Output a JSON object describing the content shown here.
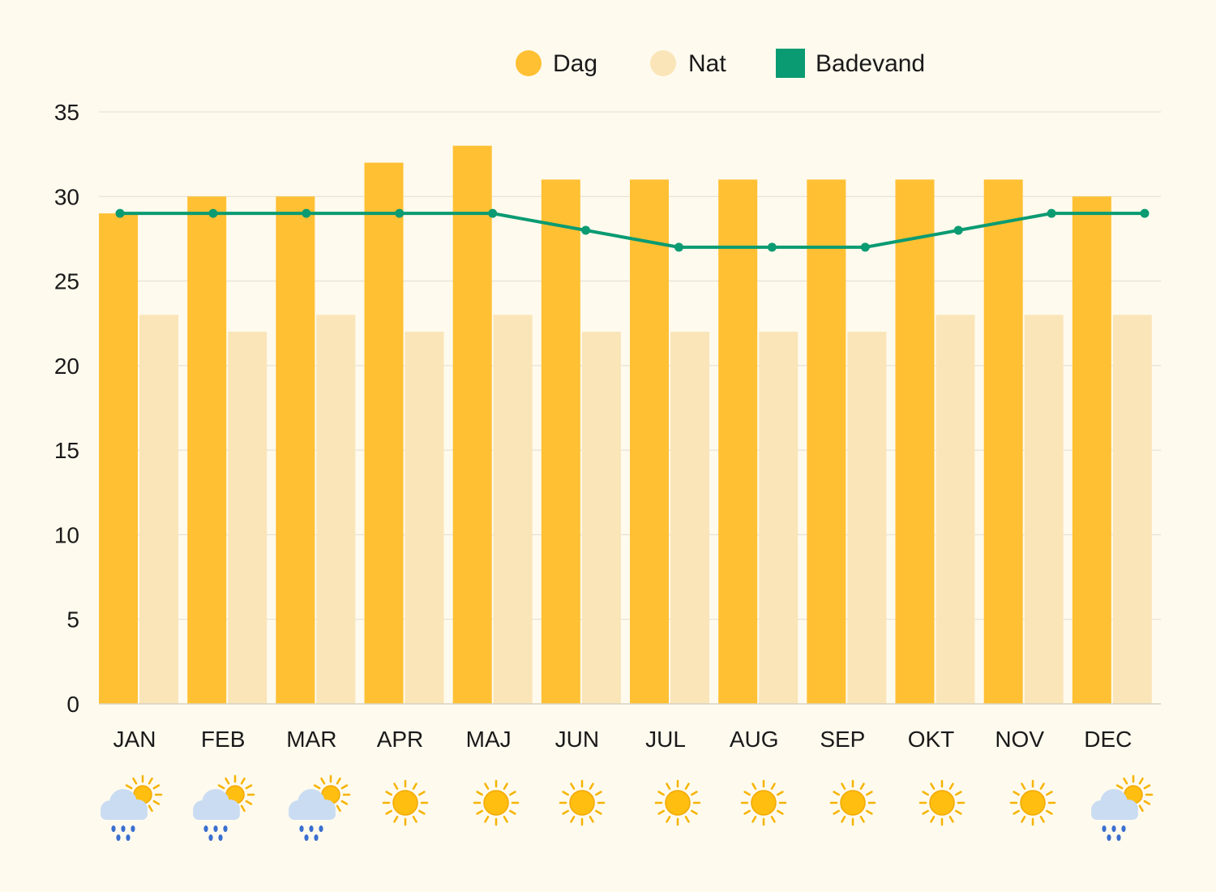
{
  "chart_data": {
    "type": "bar",
    "categories": [
      "JAN",
      "FEB",
      "MAR",
      "APR",
      "MAJ",
      "JUN",
      "JUL",
      "AUG",
      "SEP",
      "OKT",
      "NOV",
      "DEC"
    ],
    "series": [
      {
        "name": "Dag",
        "type": "bar",
        "color": "#ffc033",
        "values": [
          29,
          30,
          30,
          32,
          33,
          31,
          31,
          31,
          31,
          31,
          31,
          30
        ]
      },
      {
        "name": "Nat",
        "type": "bar",
        "color": "#fae5b8",
        "values": [
          23,
          22,
          23,
          22,
          23,
          22,
          22,
          22,
          22,
          23,
          23,
          23
        ]
      },
      {
        "name": "Badevand",
        "type": "line",
        "color": "#0a9b72",
        "values": [
          29,
          29,
          29,
          29,
          29,
          28,
          27,
          27,
          27,
          28,
          29,
          29
        ]
      }
    ],
    "yticks": [
      "0",
      "5",
      "10",
      "15",
      "20",
      "25",
      "30",
      "35"
    ],
    "ylim": [
      0,
      35
    ],
    "grid": true,
    "legend_position": "top-center",
    "weather_icons": [
      "rain-sun-icon",
      "rain-sun-icon",
      "rain-sun-icon",
      "sun-icon",
      "sun-icon",
      "sun-icon",
      "sun-icon",
      "sun-icon",
      "sun-icon",
      "sun-icon",
      "sun-icon",
      "rain-sun-icon"
    ]
  }
}
